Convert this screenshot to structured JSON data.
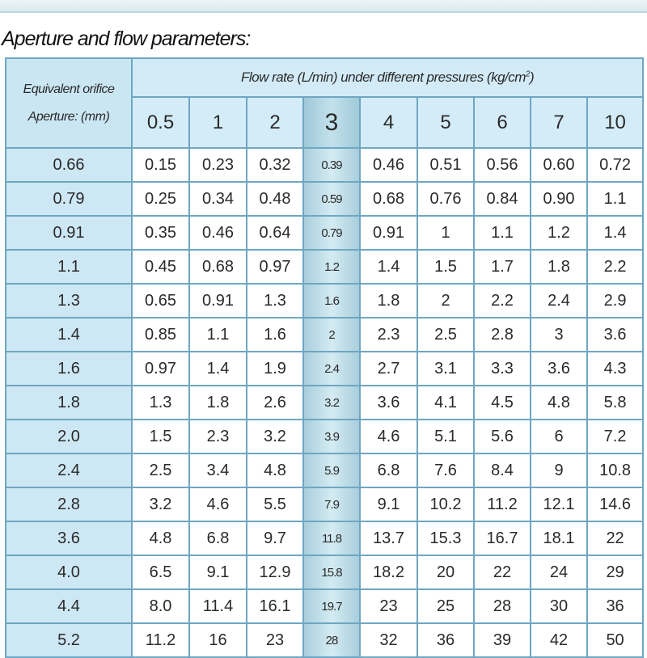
{
  "title": "Aperture and flow parameters:",
  "table": {
    "corner_line1": "Equivalent orifice",
    "corner_line2": "Aperture: (mm)",
    "caption": "Flow rate (L/min) under different pressures (kg/cm",
    "caption_sup": "2",
    "caption_end": ")",
    "pressures": [
      "0.5",
      "1",
      "2",
      "3",
      "4",
      "5",
      "6",
      "7",
      "10"
    ],
    "highlight_column": "3",
    "rows": [
      {
        "aperture": "0.66",
        "values": [
          "0.15",
          "0.23",
          "0.32",
          "0.39",
          "0.46",
          "0.51",
          "0.56",
          "0.60",
          "0.72"
        ]
      },
      {
        "aperture": "0.79",
        "values": [
          "0.25",
          "0.34",
          "0.48",
          "0.59",
          "0.68",
          "0.76",
          "0.84",
          "0.90",
          "1.1"
        ]
      },
      {
        "aperture": "0.91",
        "values": [
          "0.35",
          "0.46",
          "0.64",
          "0.79",
          "0.91",
          "1",
          "1.1",
          "1.2",
          "1.4"
        ]
      },
      {
        "aperture": "1.1",
        "values": [
          "0.45",
          "0.68",
          "0.97",
          "1.2",
          "1.4",
          "1.5",
          "1.7",
          "1.8",
          "2.2"
        ]
      },
      {
        "aperture": "1.3",
        "values": [
          "0.65",
          "0.91",
          "1.3",
          "1.6",
          "1.8",
          "2",
          "2.2",
          "2.4",
          "2.9"
        ]
      },
      {
        "aperture": "1.4",
        "values": [
          "0.85",
          "1.1",
          "1.6",
          "2",
          "2.3",
          "2.5",
          "2.8",
          "3",
          "3.6"
        ]
      },
      {
        "aperture": "1.6",
        "values": [
          "0.97",
          "1.4",
          "1.9",
          "2.4",
          "2.7",
          "3.1",
          "3.3",
          "3.6",
          "4.3"
        ]
      },
      {
        "aperture": "1.8",
        "values": [
          "1.3",
          "1.8",
          "2.6",
          "3.2",
          "3.6",
          "4.1",
          "4.5",
          "4.8",
          "5.8"
        ]
      },
      {
        "aperture": "2.0",
        "values": [
          "1.5",
          "2.3",
          "3.2",
          "3.9",
          "4.6",
          "5.1",
          "5.6",
          "6",
          "7.2"
        ]
      },
      {
        "aperture": "2.4",
        "values": [
          "2.5",
          "3.4",
          "4.8",
          "5.9",
          "6.8",
          "7.6",
          "8.4",
          "9",
          "10.8"
        ]
      },
      {
        "aperture": "2.8",
        "values": [
          "3.2",
          "4.6",
          "5.5",
          "7.9",
          "9.1",
          "10.2",
          "11.2",
          "12.1",
          "14.6"
        ]
      },
      {
        "aperture": "3.6",
        "values": [
          "4.8",
          "6.8",
          "9.7",
          "11.8",
          "13.7",
          "15.3",
          "16.7",
          "18.1",
          "22"
        ]
      },
      {
        "aperture": "4.0",
        "values": [
          "6.5",
          "9.1",
          "12.9",
          "15.8",
          "18.2",
          "20",
          "22",
          "24",
          "29"
        ]
      },
      {
        "aperture": "4.4",
        "values": [
          "8.0",
          "11.4",
          "16.1",
          "19.7",
          "23",
          "25",
          "28",
          "30",
          "36"
        ]
      },
      {
        "aperture": "5.2",
        "values": [
          "11.2",
          "16",
          "23",
          "28",
          "32",
          "36",
          "39",
          "42",
          "50"
        ]
      }
    ]
  }
}
